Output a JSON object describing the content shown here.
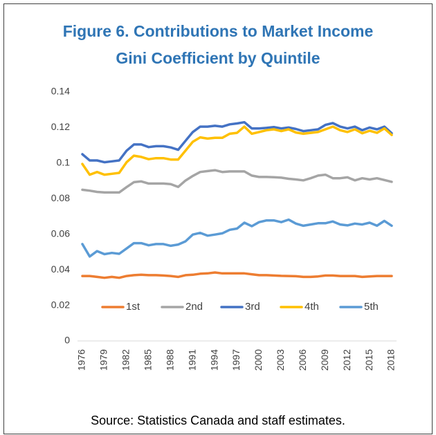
{
  "chart_data": {
    "type": "line",
    "title": [
      "Figure 6. Contributions to Market Income",
      "Gini Coefficient by Quintile"
    ],
    "source": "Source: Statistics Canada and staff estimates.",
    "categories": [
      "1976",
      null,
      null,
      "1979",
      null,
      null,
      "1982",
      null,
      null,
      "1985",
      null,
      null,
      "1988",
      null,
      null,
      "1991",
      null,
      null,
      "1994",
      null,
      null,
      "1997",
      null,
      null,
      "2000",
      null,
      null,
      "2003",
      null,
      null,
      "2006",
      null,
      null,
      "2009",
      null,
      null,
      "2012",
      null,
      null,
      "2015",
      null,
      null,
      "2018"
    ],
    "ylim": [
      0,
      0.14
    ],
    "yticks": [
      0,
      0.02,
      0.04,
      0.06,
      0.08,
      0.1,
      0.12,
      0.14
    ],
    "legend": "bottom",
    "series": [
      {
        "name": "1st",
        "color": "#ed7d31",
        "values": [
          0.0365,
          0.0365,
          0.036,
          0.0355,
          0.036,
          0.0355,
          0.0365,
          0.037,
          0.0372,
          0.037,
          0.037,
          0.0368,
          0.0365,
          0.036,
          0.037,
          0.0372,
          0.0378,
          0.038,
          0.0385,
          0.038,
          0.038,
          0.038,
          0.038,
          0.0375,
          0.037,
          0.037,
          0.0368,
          0.0366,
          0.0365,
          0.0364,
          0.036,
          0.036,
          0.0363,
          0.0368,
          0.0368,
          0.0365,
          0.0365,
          0.0365,
          0.036,
          0.0363,
          0.0365,
          0.0365,
          0.0365
        ]
      },
      {
        "name": "2nd",
        "color": "#a5a5a5",
        "values": [
          0.085,
          0.0845,
          0.0838,
          0.0835,
          0.0835,
          0.0835,
          0.0865,
          0.0893,
          0.0897,
          0.0885,
          0.0885,
          0.0885,
          0.0882,
          0.0866,
          0.0902,
          0.0928,
          0.095,
          0.0955,
          0.096,
          0.095,
          0.0953,
          0.0953,
          0.0953,
          0.093,
          0.0922,
          0.0922,
          0.0921,
          0.0918,
          0.0912,
          0.0908,
          0.0903,
          0.0915,
          0.093,
          0.0935,
          0.0915,
          0.0915,
          0.092,
          0.0903,
          0.0915,
          0.0908,
          0.0915,
          0.0905,
          0.0895
        ]
      },
      {
        "name": "3rd",
        "color": "#4472c4",
        "values": [
          0.105,
          0.1015,
          0.1015,
          0.1005,
          0.101,
          0.1015,
          0.107,
          0.1105,
          0.1105,
          0.109,
          0.1095,
          0.1095,
          0.1088,
          0.1075,
          0.1125,
          0.1175,
          0.1205,
          0.1205,
          0.121,
          0.1205,
          0.1218,
          0.1223,
          0.123,
          0.1195,
          0.1195,
          0.1198,
          0.1203,
          0.1195,
          0.12,
          0.1192,
          0.118,
          0.1185,
          0.119,
          0.1215,
          0.1225,
          0.1205,
          0.1195,
          0.1205,
          0.1185,
          0.12,
          0.119,
          0.1205,
          0.1168
        ]
      },
      {
        "name": "4th",
        "color": "#ffc000",
        "values": [
          0.0995,
          0.0935,
          0.095,
          0.0935,
          0.094,
          0.0945,
          0.1005,
          0.1042,
          0.1035,
          0.1022,
          0.1028,
          0.1028,
          0.102,
          0.102,
          0.107,
          0.112,
          0.1145,
          0.1138,
          0.1142,
          0.1142,
          0.1165,
          0.117,
          0.1205,
          0.1165,
          0.1175,
          0.1185,
          0.119,
          0.118,
          0.119,
          0.1172,
          0.1165,
          0.117,
          0.1175,
          0.119,
          0.1205,
          0.1185,
          0.1175,
          0.119,
          0.1168,
          0.1182,
          0.117,
          0.1195,
          0.1158
        ]
      },
      {
        "name": "5th",
        "color": "#5b9bd5",
        "values": [
          0.0545,
          0.0475,
          0.0505,
          0.0488,
          0.0495,
          0.049,
          0.052,
          0.055,
          0.055,
          0.0538,
          0.0545,
          0.0545,
          0.0535,
          0.0542,
          0.056,
          0.0598,
          0.0608,
          0.0592,
          0.0598,
          0.0605,
          0.0625,
          0.0632,
          0.0665,
          0.0645,
          0.0668,
          0.0678,
          0.0678,
          0.0668,
          0.0682,
          0.066,
          0.0648,
          0.0655,
          0.0662,
          0.0662,
          0.0672,
          0.0655,
          0.065,
          0.066,
          0.0655,
          0.0665,
          0.0648,
          0.0675,
          0.0648
        ]
      }
    ]
  }
}
